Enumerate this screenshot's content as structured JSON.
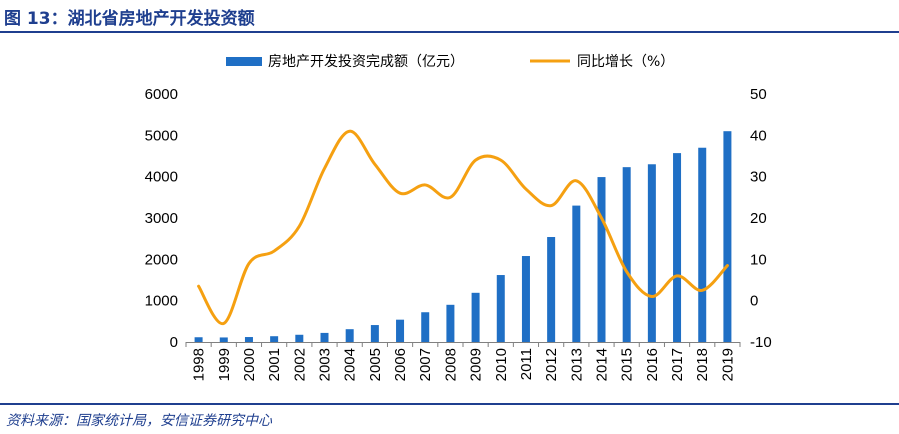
{
  "figure": {
    "title": "图 13：湖北省房地产开发投资额",
    "source": "资料来源：国家统计局，安信证券研究中心"
  },
  "chart_data": {
    "type": "bar+line",
    "categories": [
      "1998",
      "1999",
      "2000",
      "2001",
      "2002",
      "2003",
      "2004",
      "2005",
      "2006",
      "2007",
      "2008",
      "2009",
      "2010",
      "2011",
      "2012",
      "2013",
      "2014",
      "2015",
      "2016",
      "2017",
      "2018",
      "2019"
    ],
    "series": [
      {
        "name": "房地产开发投资完成额（亿元）",
        "type": "bar",
        "axis": "left",
        "color": "#1f6fc5",
        "values": [
          115,
          110,
          120,
          140,
          175,
          220,
          310,
          410,
          540,
          720,
          900,
          1190,
          1620,
          2080,
          2540,
          3300,
          3990,
          4230,
          4300,
          4570,
          4700,
          5100
        ]
      },
      {
        "name": "同比增长（%）",
        "type": "line",
        "axis": "right",
        "color": "#f5a011",
        "values": [
          3.5,
          -5.5,
          9,
          12,
          18,
          32,
          41,
          33,
          26,
          28,
          25,
          34,
          34,
          27,
          23,
          29,
          20,
          7,
          1,
          6,
          2.5,
          8.5
        ]
      }
    ],
    "y_left": {
      "min": 0,
      "max": 6000,
      "ticks": [
        0,
        1000,
        2000,
        3000,
        4000,
        5000,
        6000
      ]
    },
    "y_right": {
      "min": -10,
      "max": 50,
      "ticks": [
        -10,
        0,
        10,
        20,
        30,
        40,
        50
      ]
    },
    "grid": false,
    "legend": "top"
  }
}
